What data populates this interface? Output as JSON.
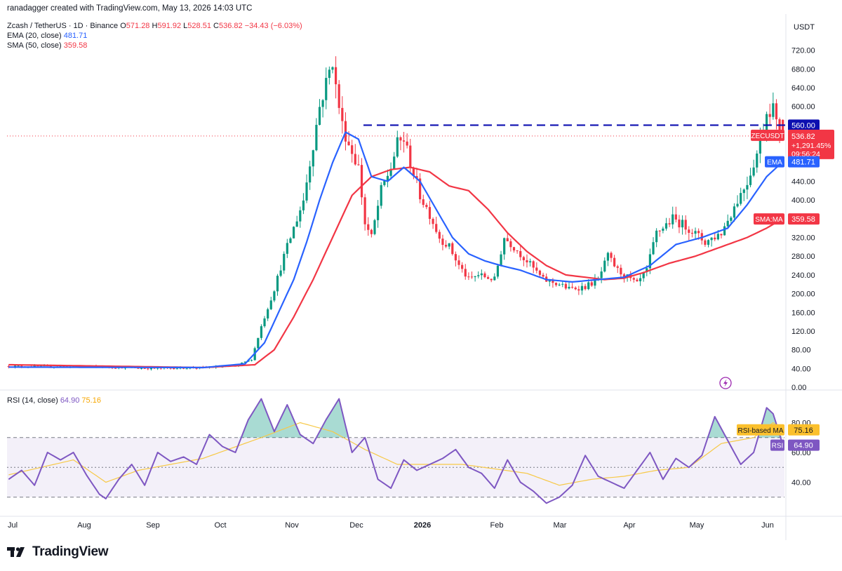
{
  "header": {
    "created": "ranadagger created with TradingView.com, May 13, 2026 14:03 UTC",
    "symbol": "Zcash / TetherUS · 1D · Binance",
    "o_label": "O",
    "o_val": "571.28",
    "h_label": "H",
    "h_val": "591.92",
    "l_label": "L",
    "l_val": "528.51",
    "c_label": "C",
    "c_val": "536.82",
    "change": "−34.43 (−6.03%)",
    "ema_label": "EMA (20, close)",
    "ema_val": "481.71",
    "sma_label": "SMA (50, close)",
    "sma_val": "359.58",
    "rsi_label": "RSI (14, close)",
    "rsi_val": "64.90",
    "rsi_ma_val": "75.16"
  },
  "brand": {
    "name": "TradingView"
  },
  "chart_data": {
    "type": "candlestick",
    "currency": "USDT",
    "ylim": [
      0,
      760
    ],
    "yticks": [
      "720.00",
      "680.00",
      "640.00",
      "600.00",
      "560.00",
      "520.00",
      "480.00",
      "440.00",
      "400.00",
      "360.00",
      "320.00",
      "280.00",
      "240.00",
      "200.00",
      "160.00",
      "120.00",
      "80.00",
      "40.00",
      "0.00"
    ],
    "x_labels": [
      "Jul",
      "Aug",
      "Sep",
      "Oct",
      "Nov",
      "Dec",
      "2026",
      "Feb",
      "Mar",
      "Apr",
      "May",
      "Jun"
    ],
    "resistance": {
      "value": 560,
      "label": "560.00"
    },
    "price_tag": {
      "label": "ZECUSDT",
      "price": "536.82",
      "change": "+1,291.45%",
      "countdown": "09:56:24"
    },
    "ema_tag": {
      "label": "EMA",
      "value": "481.71"
    },
    "sma_tag": {
      "label": "SMA:MA",
      "value": "359.58"
    },
    "close_path": [
      [
        0,
        45
      ],
      [
        25,
        44
      ],
      [
        45,
        40
      ],
      [
        60,
        42
      ],
      [
        70,
        45
      ],
      [
        75,
        60
      ],
      [
        78,
        130
      ],
      [
        82,
        210
      ],
      [
        85,
        280
      ],
      [
        88,
        340
      ],
      [
        91,
        400
      ],
      [
        94,
        520
      ],
      [
        96,
        600
      ],
      [
        98,
        650
      ],
      [
        100,
        700
      ],
      [
        101,
        640
      ],
      [
        103,
        560
      ],
      [
        105,
        520
      ],
      [
        108,
        470
      ],
      [
        110,
        350
      ],
      [
        112,
        320
      ],
      [
        115,
        420
      ],
      [
        118,
        470
      ],
      [
        120,
        520
      ],
      [
        122,
        530
      ],
      [
        124,
        480
      ],
      [
        127,
        410
      ],
      [
        130,
        370
      ],
      [
        133,
        320
      ],
      [
        136,
        300
      ],
      [
        139,
        260
      ],
      [
        142,
        230
      ],
      [
        145,
        240
      ],
      [
        150,
        230
      ],
      [
        153,
        320
      ],
      [
        156,
        300
      ],
      [
        160,
        270
      ],
      [
        165,
        230
      ],
      [
        170,
        220
      ],
      [
        173,
        210
      ],
      [
        178,
        215
      ],
      [
        182,
        230
      ],
      [
        185,
        280
      ],
      [
        188,
        250
      ],
      [
        191,
        235
      ],
      [
        194,
        220
      ],
      [
        197,
        250
      ],
      [
        200,
        330
      ],
      [
        205,
        360
      ],
      [
        210,
        340
      ],
      [
        215,
        310
      ],
      [
        220,
        330
      ],
      [
        225,
        400
      ],
      [
        228,
        440
      ],
      [
        231,
        500
      ],
      [
        234,
        590
      ],
      [
        236,
        600
      ],
      [
        237,
        560
      ],
      [
        239,
        537
      ]
    ],
    "ema": {
      "name": "EMA (20, close)",
      "path": [
        [
          0,
          43
        ],
        [
          60,
          42
        ],
        [
          73,
          50
        ],
        [
          79,
          95
        ],
        [
          84,
          170
        ],
        [
          88,
          230
        ],
        [
          92,
          310
        ],
        [
          96,
          400
        ],
        [
          100,
          480
        ],
        [
          104,
          545
        ],
        [
          108,
          530
        ],
        [
          112,
          450
        ],
        [
          117,
          440
        ],
        [
          122,
          470
        ],
        [
          127,
          440
        ],
        [
          132,
          380
        ],
        [
          137,
          320
        ],
        [
          142,
          285
        ],
        [
          147,
          270
        ],
        [
          152,
          260
        ],
        [
          158,
          250
        ],
        [
          166,
          230
        ],
        [
          174,
          225
        ],
        [
          182,
          230
        ],
        [
          190,
          235
        ],
        [
          198,
          260
        ],
        [
          206,
          305
        ],
        [
          214,
          320
        ],
        [
          222,
          340
        ],
        [
          228,
          390
        ],
        [
          234,
          450
        ],
        [
          239,
          482
        ]
      ]
    },
    "sma": {
      "name": "SMA (50, close)",
      "path": [
        [
          0,
          48
        ],
        [
          60,
          42
        ],
        [
          76,
          48
        ],
        [
          82,
          80
        ],
        [
          88,
          150
        ],
        [
          94,
          230
        ],
        [
          100,
          320
        ],
        [
          106,
          410
        ],
        [
          112,
          450
        ],
        [
          118,
          465
        ],
        [
          124,
          470
        ],
        [
          130,
          460
        ],
        [
          136,
          430
        ],
        [
          142,
          420
        ],
        [
          148,
          380
        ],
        [
          154,
          330
        ],
        [
          160,
          290
        ],
        [
          166,
          260
        ],
        [
          172,
          240
        ],
        [
          178,
          235
        ],
        [
          184,
          230
        ],
        [
          190,
          233
        ],
        [
          196,
          245
        ],
        [
          204,
          265
        ],
        [
          212,
          280
        ],
        [
          220,
          300
        ],
        [
          228,
          320
        ],
        [
          234,
          340
        ],
        [
          239,
          360
        ]
      ]
    },
    "rsi": {
      "label": "RSI (14, close)",
      "ticks": [
        "80.00",
        "60.00",
        "40.00"
      ],
      "levels": [
        70,
        50,
        30
      ],
      "tag_rsi": {
        "label": "RSI",
        "value": "64.90"
      },
      "tag_ma": {
        "label": "RSI-based MA",
        "value": "75.16"
      },
      "rsi_path": [
        [
          0,
          42
        ],
        [
          4,
          48
        ],
        [
          8,
          38
        ],
        [
          12,
          60
        ],
        [
          16,
          55
        ],
        [
          20,
          60
        ],
        [
          24,
          45
        ],
        [
          28,
          32
        ],
        [
          30,
          29
        ],
        [
          34,
          42
        ],
        [
          38,
          52
        ],
        [
          42,
          38
        ],
        [
          46,
          60
        ],
        [
          50,
          54
        ],
        [
          54,
          57
        ],
        [
          58,
          52
        ],
        [
          62,
          72
        ],
        [
          66,
          64
        ],
        [
          70,
          60
        ],
        [
          74,
          82
        ],
        [
          78,
          96
        ],
        [
          82,
          74
        ],
        [
          86,
          92
        ],
        [
          90,
          72
        ],
        [
          94,
          66
        ],
        [
          98,
          82
        ],
        [
          102,
          96
        ],
        [
          106,
          60
        ],
        [
          110,
          70
        ],
        [
          114,
          42
        ],
        [
          118,
          36
        ],
        [
          122,
          55
        ],
        [
          126,
          48
        ],
        [
          130,
          52
        ],
        [
          134,
          56
        ],
        [
          138,
          62
        ],
        [
          142,
          50
        ],
        [
          146,
          46
        ],
        [
          150,
          36
        ],
        [
          154,
          55
        ],
        [
          158,
          40
        ],
        [
          162,
          34
        ],
        [
          166,
          26
        ],
        [
          170,
          30
        ],
        [
          174,
          38
        ],
        [
          178,
          58
        ],
        [
          182,
          44
        ],
        [
          186,
          40
        ],
        [
          190,
          36
        ],
        [
          194,
          48
        ],
        [
          198,
          60
        ],
        [
          202,
          42
        ],
        [
          206,
          56
        ],
        [
          210,
          50
        ],
        [
          214,
          58
        ],
        [
          218,
          84
        ],
        [
          222,
          68
        ],
        [
          226,
          52
        ],
        [
          230,
          60
        ],
        [
          234,
          90
        ],
        [
          236,
          86
        ],
        [
          239,
          65
        ]
      ],
      "ma_path": [
        [
          0,
          45
        ],
        [
          20,
          55
        ],
        [
          30,
          40
        ],
        [
          40,
          48
        ],
        [
          60,
          56
        ],
        [
          78,
          70
        ],
        [
          90,
          80
        ],
        [
          100,
          74
        ],
        [
          110,
          62
        ],
        [
          120,
          52
        ],
        [
          140,
          52
        ],
        [
          160,
          46
        ],
        [
          170,
          38
        ],
        [
          180,
          42
        ],
        [
          190,
          44
        ],
        [
          200,
          48
        ],
        [
          210,
          50
        ],
        [
          220,
          66
        ],
        [
          230,
          70
        ],
        [
          236,
          80
        ],
        [
          239,
          75
        ]
      ]
    }
  }
}
